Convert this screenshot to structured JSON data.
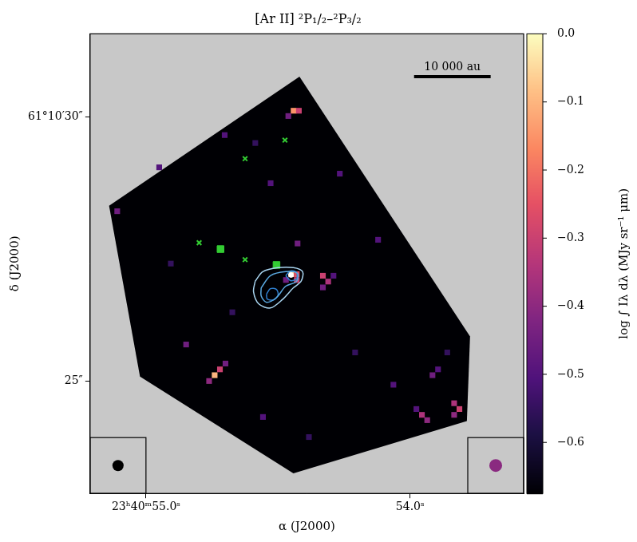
{
  "chart_data": {
    "type": "heatmap",
    "title": "[Ar II] ²P₁/₂–²P₃/₂",
    "x_label": "α (J2000)",
    "y_label": "δ (J2000)",
    "xlim": [
      55.212,
      53.57
    ],
    "xticks": [
      {
        "value": 55.0,
        "label": "23ʰ40ᵐ55.0ˢ"
      },
      {
        "value": 54.0,
        "label": "54.0ˢ"
      }
    ],
    "ylim": [
      22.88,
      31.57
    ],
    "yticks": [
      {
        "value": 30,
        "label": "61°10′30″"
      },
      {
        "value": 25,
        "label": "25″"
      }
    ],
    "grid": false,
    "colorbar": {
      "label": "log ∫ Iλ dλ (MJy sr⁻¹ μm)",
      "range": [
        -0.675,
        0.0
      ],
      "ticks": [
        {
          "value": 0.0,
          "label": "0.0"
        },
        {
          "value": -0.1,
          "label": "−0.1"
        },
        {
          "value": -0.2,
          "label": "−0.2"
        },
        {
          "value": -0.3,
          "label": "−0.3"
        },
        {
          "value": -0.4,
          "label": "−0.4"
        },
        {
          "value": -0.5,
          "label": "−0.5"
        },
        {
          "value": -0.6,
          "label": "−0.6"
        }
      ]
    },
    "footprint": [
      [
        55.14,
        28.32
      ],
      [
        54.419,
        30.76
      ],
      [
        53.773,
        25.85
      ],
      [
        53.785,
        24.25
      ],
      [
        54.442,
        23.26
      ],
      [
        55.023,
        25.09
      ]
    ],
    "cell_size": [
      0.02,
      0.1
    ],
    "cells": [
      [
        54.451,
        27.03,
        -0.05
      ],
      [
        54.43,
        27.03,
        -0.25
      ],
      [
        54.43,
        26.92,
        -0.3
      ],
      [
        54.471,
        26.92,
        -0.45
      ],
      [
        54.331,
        27.0,
        -0.3
      ],
      [
        54.311,
        26.89,
        -0.35
      ],
      [
        54.331,
        26.78,
        -0.45
      ],
      [
        54.291,
        27.0,
        -0.5
      ],
      [
        54.442,
        30.12,
        -0.15
      ],
      [
        54.422,
        30.12,
        -0.3
      ],
      [
        54.462,
        30.02,
        -0.45
      ],
      [
        54.741,
        25.12,
        -0.1
      ],
      [
        54.721,
        25.23,
        -0.3
      ],
      [
        54.7,
        25.34,
        -0.45
      ],
      [
        54.762,
        25.01,
        -0.4
      ],
      [
        53.814,
        24.48,
        -0.3
      ],
      [
        53.834,
        24.59,
        -0.35
      ],
      [
        53.834,
        24.37,
        -0.4
      ],
      [
        53.956,
        24.37,
        -0.35
      ],
      [
        53.936,
        24.27,
        -0.4
      ],
      [
        53.977,
        24.48,
        -0.5
      ],
      [
        53.916,
        25.12,
        -0.45
      ],
      [
        53.895,
        25.23,
        -0.5
      ],
      [
        53.86,
        25.55,
        -0.55
      ],
      [
        54.951,
        29.05,
        -0.5
      ],
      [
        55.11,
        28.22,
        -0.45
      ],
      [
        54.703,
        29.66,
        -0.5
      ],
      [
        54.587,
        29.51,
        -0.55
      ],
      [
        54.529,
        28.75,
        -0.5
      ],
      [
        54.849,
        25.7,
        -0.45
      ],
      [
        54.558,
        24.33,
        -0.5
      ],
      [
        54.209,
        25.55,
        -0.55
      ],
      [
        54.122,
        27.68,
        -0.5
      ],
      [
        54.674,
        26.31,
        -0.55
      ],
      [
        54.907,
        27.23,
        -0.55
      ],
      [
        54.267,
        28.93,
        -0.5
      ],
      [
        54.384,
        23.95,
        -0.55
      ],
      [
        54.064,
        24.94,
        -0.5
      ],
      [
        54.427,
        27.61,
        -0.45
      ]
    ],
    "contours": [
      {
        "color": "#a8d4f0",
        "points": [
          [
            54.587,
            26.89
          ],
          [
            54.558,
            27.073
          ],
          [
            54.5,
            27.149
          ],
          [
            54.442,
            27.149
          ],
          [
            54.407,
            27.073
          ],
          [
            54.413,
            26.89
          ],
          [
            54.442,
            26.768
          ],
          [
            54.485,
            26.54
          ],
          [
            54.529,
            26.387
          ],
          [
            54.573,
            26.463
          ],
          [
            54.593,
            26.692
          ]
        ]
      },
      {
        "color": "#5aa8e0",
        "points": [
          [
            54.564,
            26.768
          ],
          [
            54.529,
            26.997
          ],
          [
            54.471,
            27.073
          ],
          [
            54.427,
            27.043
          ],
          [
            54.43,
            26.89
          ],
          [
            54.471,
            26.799
          ],
          [
            54.506,
            26.585
          ],
          [
            54.544,
            26.494
          ],
          [
            54.564,
            26.616
          ]
        ]
      },
      {
        "color": "#2f7fd0",
        "points": [
          [
            54.544,
            26.646
          ],
          [
            54.529,
            26.753
          ],
          [
            54.506,
            26.738
          ],
          [
            54.5,
            26.631
          ],
          [
            54.517,
            26.54
          ],
          [
            54.541,
            26.555
          ]
        ]
      },
      {
        "color": "#2f7fd0",
        "points": [
          [
            54.471,
            26.997
          ],
          [
            54.453,
            27.088
          ],
          [
            54.43,
            27.058
          ],
          [
            54.43,
            26.936
          ],
          [
            54.453,
            26.905
          ]
        ]
      }
    ],
    "markers": [
      {
        "marker": "square",
        "color": "#33cc33",
        "points": [
          [
            54.718,
            27.5
          ],
          [
            54.506,
            27.2
          ]
        ]
      },
      {
        "marker": "cross",
        "color": "#33cc33",
        "points": [
          [
            54.474,
            29.56
          ],
          [
            54.625,
            29.21
          ],
          [
            54.799,
            27.62
          ],
          [
            54.625,
            27.3
          ]
        ]
      },
      {
        "marker": "circle",
        "color": "#ffffff",
        "points": [
          [
            54.451,
            27.01
          ]
        ]
      }
    ],
    "scale_bar": {
      "label": "10 000 au",
      "ra": [
        53.985,
        53.695
      ],
      "dec": 30.76
    }
  }
}
